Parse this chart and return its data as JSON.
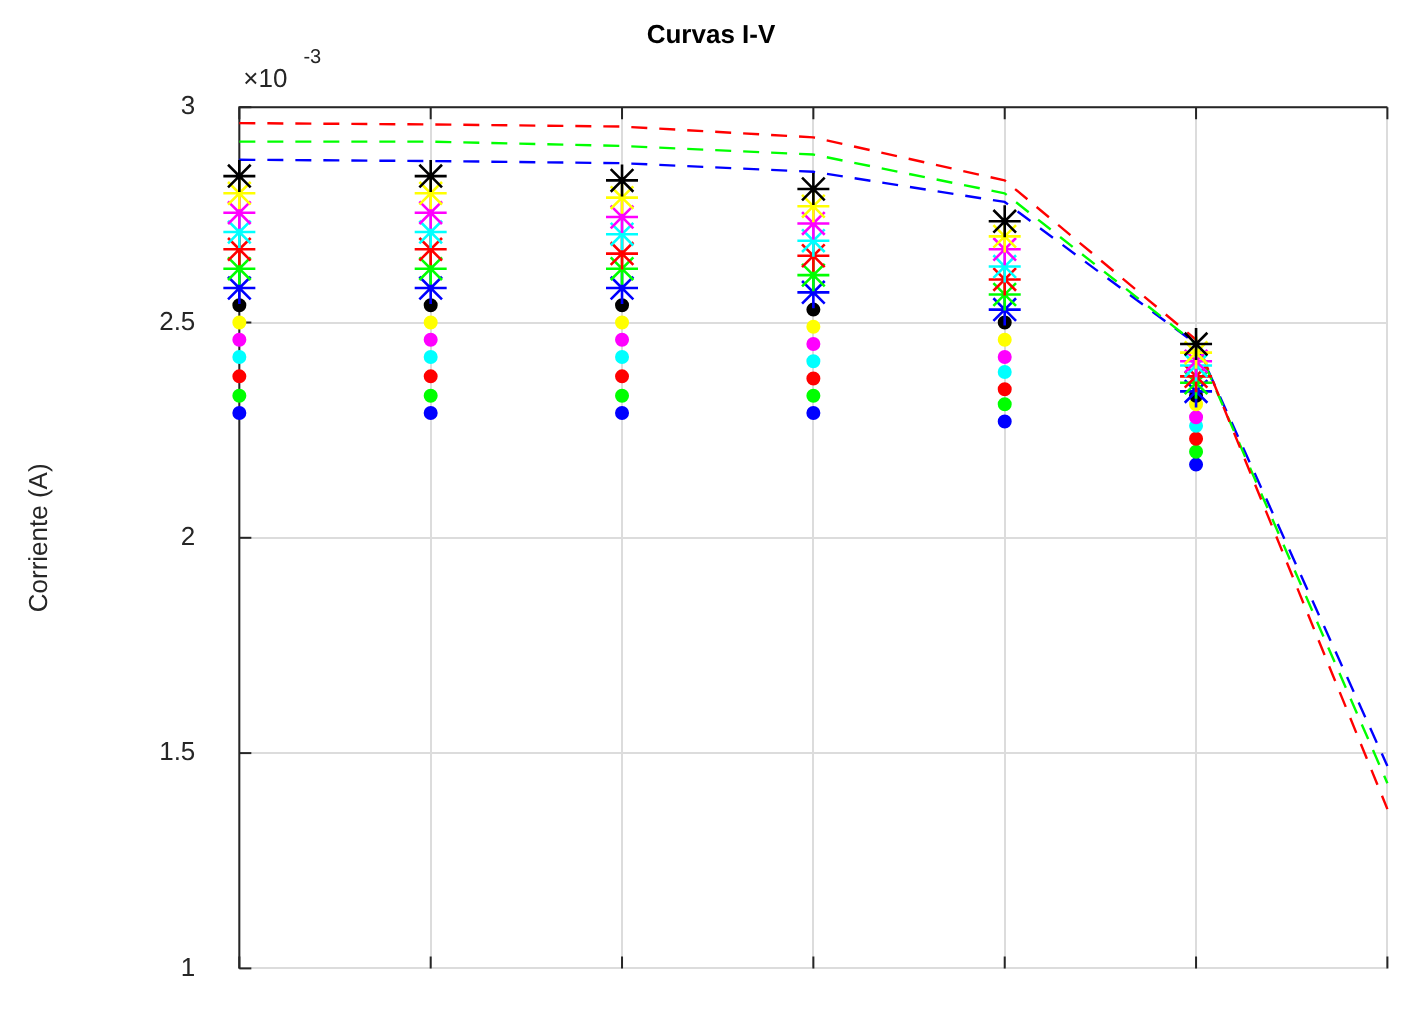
{
  "chart_data": {
    "type": "scatter",
    "title": "Curvas I-V",
    "ylabel": "Corriente (A)",
    "annotations": [
      "×10$^{-3}$"
    ],
    "categories": [
      null,
      null,
      null,
      null,
      null,
      null,
      null
    ],
    "ylim": [
      1,
      3
    ],
    "yticks": [
      1,
      1.5,
      2,
      2.5,
      3
    ],
    "grid": true,
    "legend": false,
    "tick_labels": "y",
    "series": [
      {
        "color": "#000000",
        "marker": "cross",
        "values": [
          2.84,
          2.84,
          2.83,
          2.81,
          2.735,
          2.45,
          null
        ]
      },
      {
        "color": "#ffff00",
        "marker": "cross",
        "values": [
          2.8,
          2.8,
          2.79,
          2.77,
          2.7,
          2.43,
          null
        ]
      },
      {
        "color": "#ff00ff",
        "marker": "cross",
        "values": [
          2.755,
          2.755,
          2.745,
          2.73,
          2.67,
          2.41,
          null
        ]
      },
      {
        "color": "#00ffff",
        "marker": "cross",
        "values": [
          2.71,
          2.71,
          2.705,
          2.69,
          2.63,
          2.4,
          null
        ]
      },
      {
        "color": "#ff0000",
        "marker": "cross",
        "values": [
          2.67,
          2.67,
          2.66,
          2.655,
          2.6,
          2.375,
          null
        ]
      },
      {
        "color": "#00ff00",
        "marker": "cross",
        "values": [
          2.625,
          2.625,
          2.625,
          2.61,
          2.565,
          2.36,
          null
        ]
      },
      {
        "color": "#0000ff",
        "marker": "cross",
        "values": [
          2.58,
          2.58,
          2.58,
          2.57,
          2.53,
          2.34,
          null
        ]
      },
      {
        "color": "#000000",
        "marker": "circle",
        "values": [
          2.54,
          2.54,
          2.54,
          2.53,
          2.5,
          2.33,
          null
        ]
      },
      {
        "color": "#ffff00",
        "marker": "circle",
        "values": [
          2.5,
          2.5,
          2.5,
          2.49,
          2.46,
          2.31,
          null
        ]
      },
      {
        "color": "#ff00ff",
        "marker": "circle",
        "values": [
          2.46,
          2.46,
          2.46,
          2.45,
          2.42,
          2.28,
          null
        ]
      },
      {
        "color": "#00ffff",
        "marker": "circle",
        "values": [
          2.42,
          2.42,
          2.42,
          2.41,
          2.385,
          2.26,
          null
        ]
      },
      {
        "color": "#ff0000",
        "marker": "circle",
        "values": [
          2.375,
          2.375,
          2.375,
          2.37,
          2.345,
          2.23,
          null
        ]
      },
      {
        "color": "#00ff00",
        "marker": "circle",
        "values": [
          2.33,
          2.33,
          2.33,
          2.33,
          2.31,
          2.2,
          null
        ]
      },
      {
        "color": "#0000ff",
        "marker": "circle",
        "values": [
          2.29,
          2.29,
          2.29,
          2.29,
          2.27,
          2.17,
          null
        ]
      },
      {
        "type": "line",
        "color": "#ff0000",
        "marker": "none",
        "line_style": "dashed",
        "values": [
          2.963,
          2.96,
          2.955,
          2.93,
          2.83,
          2.46,
          1.37
        ]
      },
      {
        "type": "line",
        "color": "#00ff00",
        "marker": "none",
        "line_style": "dashed",
        "values": [
          2.92,
          2.92,
          2.91,
          2.89,
          2.8,
          2.45,
          1.43
        ]
      },
      {
        "type": "line",
        "color": "#0000ff",
        "marker": "none",
        "line_style": "dashed",
        "values": [
          2.878,
          2.875,
          2.87,
          2.85,
          2.78,
          2.45,
          1.47
        ]
      }
    ]
  }
}
